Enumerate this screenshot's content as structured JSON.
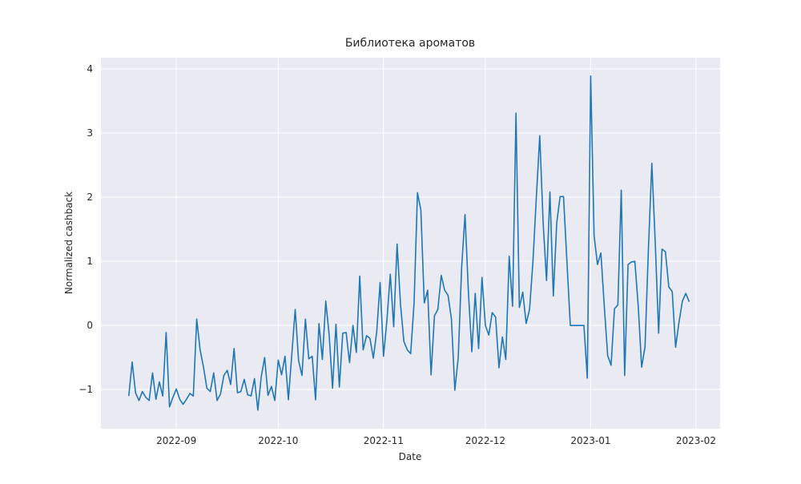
{
  "chart_data": {
    "type": "line",
    "title": "Библиотека ароматов",
    "xlabel": "Date",
    "ylabel": "Normalized cashback",
    "color": "#1f77b4",
    "grid": true,
    "xlim": [
      19213.8,
      19396.1
    ],
    "xticks": [
      {
        "value": 19236,
        "label": "2022-09"
      },
      {
        "value": 19266,
        "label": "2022-10"
      },
      {
        "value": 19297,
        "label": "2022-11"
      },
      {
        "value": 19327,
        "label": "2022-12"
      },
      {
        "value": 19358,
        "label": "2023-01"
      },
      {
        "value": 19389,
        "label": "2023-02"
      }
    ],
    "ylim": [
      -1.61,
      4.175
    ],
    "yticks": [
      {
        "value": -1,
        "label": "−1"
      },
      0,
      1,
      2,
      3,
      4
    ],
    "x": [
      19222,
      19223,
      19224,
      19225,
      19226,
      19227,
      19228,
      19229,
      19230,
      19231,
      19232,
      19233,
      19234,
      19235,
      19236,
      19237,
      19238,
      19239,
      19240,
      19241,
      19242,
      19243,
      19244,
      19245,
      19246,
      19247,
      19248,
      19249,
      19250,
      19251,
      19252,
      19253,
      19254,
      19255,
      19256,
      19257,
      19258,
      19259,
      19260,
      19261,
      19262,
      19263,
      19264,
      19265,
      19266,
      19267,
      19268,
      19269,
      19270,
      19271,
      19272,
      19273,
      19274,
      19275,
      19276,
      19277,
      19278,
      19279,
      19280,
      19281,
      19282,
      19283,
      19284,
      19285,
      19286,
      19287,
      19288,
      19289,
      19290,
      19291,
      19292,
      19293,
      19294,
      19295,
      19296,
      19297,
      19298,
      19299,
      19300,
      19301,
      19302,
      19303,
      19304,
      19305,
      19306,
      19307,
      19308,
      19309,
      19310,
      19311,
      19312,
      19313,
      19314,
      19315,
      19316,
      19317,
      19318,
      19319,
      19320,
      19321,
      19322,
      19323,
      19324,
      19325,
      19326,
      19327,
      19328,
      19329,
      19330,
      19331,
      19332,
      19333,
      19334,
      19335,
      19336,
      19337,
      19338,
      19339,
      19340,
      19341,
      19342,
      19343,
      19344,
      19345,
      19346,
      19347,
      19348,
      19349,
      19350,
      19351,
      19352,
      19353,
      19354,
      19355,
      19356,
      19357,
      19358,
      19359,
      19360,
      19361,
      19362,
      19363,
      19364,
      19365,
      19366,
      19367,
      19368,
      19369,
      19370,
      19371,
      19372,
      19373,
      19374,
      19375,
      19376,
      19377,
      19378,
      19379,
      19380,
      19381,
      19382,
      19383,
      19384,
      19385,
      19386,
      19387
    ],
    "values": [
      -1.1,
      -0.57,
      -1.05,
      -1.17,
      -1.03,
      -1.12,
      -1.17,
      -0.74,
      -1.15,
      -0.88,
      -1.1,
      -0.11,
      -1.27,
      -1.12,
      -0.99,
      -1.15,
      -1.23,
      -1.15,
      -1.06,
      -1.1,
      0.1,
      -0.38,
      -0.65,
      -0.98,
      -1.03,
      -0.74,
      -1.17,
      -1.07,
      -0.78,
      -0.7,
      -0.92,
      -0.36,
      -1.05,
      -1.03,
      -0.84,
      -1.08,
      -1.1,
      -0.83,
      -1.32,
      -0.8,
      -0.5,
      -1.09,
      -0.95,
      -1.17,
      -0.54,
      -0.77,
      -0.48,
      -1.16,
      -0.45,
      0.25,
      -0.55,
      -0.78,
      0.1,
      -0.52,
      -0.48,
      -1.16,
      0.03,
      -0.53,
      0.38,
      -0.15,
      -0.98,
      0.02,
      -0.96,
      -0.12,
      -0.11,
      -0.58,
      0.0,
      -0.42,
      0.77,
      -0.38,
      -0.16,
      -0.2,
      -0.51,
      -0.1,
      0.67,
      -0.48,
      0.08,
      0.8,
      -0.02,
      1.27,
      0.33,
      -0.25,
      -0.38,
      -0.44,
      0.35,
      2.07,
      1.8,
      0.35,
      0.55,
      -0.77,
      0.15,
      0.25,
      0.78,
      0.55,
      0.47,
      0.1,
      -1.01,
      -0.5,
      0.9,
      1.73,
      0.52,
      -0.41,
      0.5,
      -0.36,
      0.75,
      0.0,
      -0.15,
      0.2,
      0.13,
      -0.66,
      -0.18,
      -0.53,
      1.08,
      0.3,
      3.31,
      0.28,
      0.52,
      0.03,
      0.25,
      1.0,
      2.0,
      2.96,
      1.6,
      0.7,
      2.08,
      0.46,
      1.6,
      2.01,
      2.01,
      1.0,
      0,
      0,
      0,
      0,
      0,
      -0.82,
      3.89,
      1.4,
      0.95,
      1.13,
      0.3,
      -0.47,
      -0.62,
      0.26,
      0.32,
      2.11,
      -0.78,
      0.95,
      0.99,
      1.0,
      0.3,
      -0.65,
      -0.33,
      1.2,
      2.53,
      1.3,
      -0.12,
      1.19,
      1.15,
      0.6,
      0.53,
      -0.34,
      0.05,
      0.38,
      0.5,
      0.37
    ]
  }
}
